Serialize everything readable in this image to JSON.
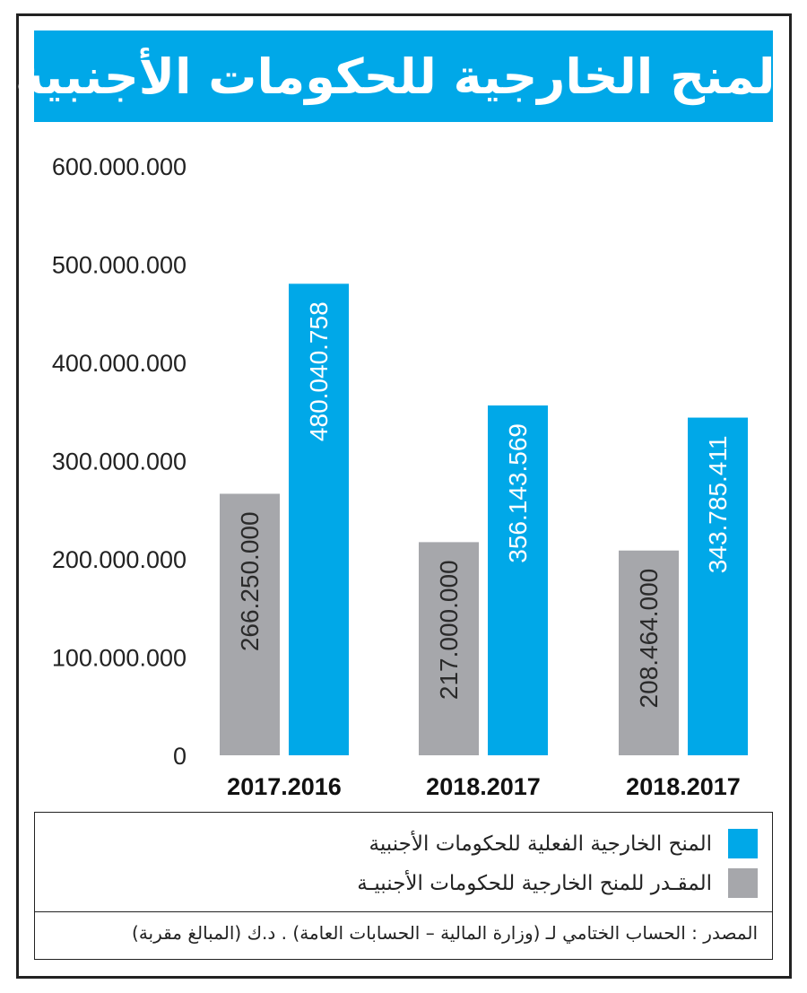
{
  "header": {
    "title": "المنح الخارجية للحكومات الأجنبية"
  },
  "colors": {
    "actual": "#00a8e8",
    "estimated": "#a6a7ab",
    "title_bg": "#00a8e8",
    "text": "#222222"
  },
  "chart_data": {
    "type": "bar",
    "title": "المنح الخارجية للحكومات الأجنبية",
    "categories": [
      "2017.2016",
      "2018.2017",
      "2018.2017"
    ],
    "series": [
      {
        "name": "المقـدر للمنح الخارجية للحكومات الأجنبيـة",
        "key": "estimated",
        "values": [
          266250000,
          217000000,
          208464000
        ],
        "labels": [
          "266.250.000",
          "217.000.000",
          "208.464.000"
        ]
      },
      {
        "name": "المنح الخارجية الفعلية للحكومات الأجنبية",
        "key": "actual",
        "values": [
          480040758,
          356143569,
          343785411
        ],
        "labels": [
          "480.040.758",
          "356.143.569",
          "343.785.411"
        ]
      }
    ],
    "ylim": [
      0,
      600000000
    ],
    "yticks": [
      0,
      100000000,
      200000000,
      300000000,
      400000000,
      500000000,
      600000000
    ],
    "ytick_labels": [
      "0",
      "100.000.000",
      "200.000.000",
      "300.000.000",
      "400.000.000",
      "500.000.000",
      "600.000.000"
    ],
    "xlabel": "",
    "ylabel": ""
  },
  "legend": {
    "items": [
      {
        "label": "المنح الخارجية الفعلية للحكومات الأجنبية",
        "color": "#00a8e8"
      },
      {
        "label": "المقـدر للمنح الخارجية للحكومات الأجنبيـة",
        "color": "#a6a7ab"
      }
    ]
  },
  "source": "المصدر : الحساب الختامي لـ (وزارة المالية – الحسابات العامة) . د.ك (المبالغ مقربة)"
}
